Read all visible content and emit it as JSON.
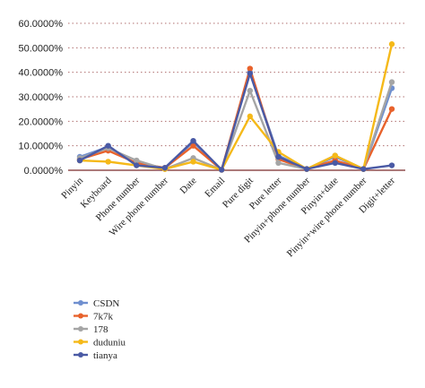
{
  "chart_data": {
    "type": "line",
    "categories": [
      "Pinyin",
      "Keyboard",
      "Phone number",
      "Wire phone number",
      "Date",
      "Email",
      "Pure digit",
      "Pure letter",
      "Pinyin+phone number",
      "Pinyin+date",
      "Pinyin+wire phone number",
      "Digit+letter"
    ],
    "series": [
      {
        "name": "CSDN",
        "color": "#6f8fcf",
        "values": [
          5.5,
          9.5,
          2.5,
          1.0,
          11.5,
          0.2,
          40.0,
          6.0,
          0.5,
          5.5,
          0.5,
          33.5
        ]
      },
      {
        "name": "7k7k",
        "color": "#e8622c",
        "values": [
          4.5,
          8.0,
          3.0,
          1.0,
          10.0,
          0.2,
          41.5,
          4.5,
          0.5,
          4.0,
          0.5,
          25.0
        ]
      },
      {
        "name": "178",
        "color": "#a5a5a5",
        "values": [
          5.0,
          9.0,
          4.0,
          0.5,
          5.0,
          0.2,
          32.5,
          3.0,
          0.5,
          6.0,
          0.5,
          36.0
        ]
      },
      {
        "name": "duduniu",
        "color": "#f5b919",
        "values": [
          4.0,
          3.5,
          2.0,
          0.5,
          3.5,
          0.2,
          22.0,
          7.5,
          0.5,
          6.0,
          0.5,
          51.5
        ]
      },
      {
        "name": "tianya",
        "color": "#4a5aa5",
        "values": [
          4.0,
          10.0,
          2.0,
          1.0,
          12.0,
          0.2,
          39.5,
          5.5,
          0.5,
          3.0,
          0.5,
          2.0
        ]
      }
    ],
    "yticks": [
      "0.0000%",
      "10.0000%",
      "20.0000%",
      "30.0000%",
      "40.0000%",
      "50.0000%",
      "60.0000%"
    ],
    "ylim": [
      0,
      60
    ],
    "grid": "horizontal dotted",
    "legend_position": "bottom-left"
  }
}
